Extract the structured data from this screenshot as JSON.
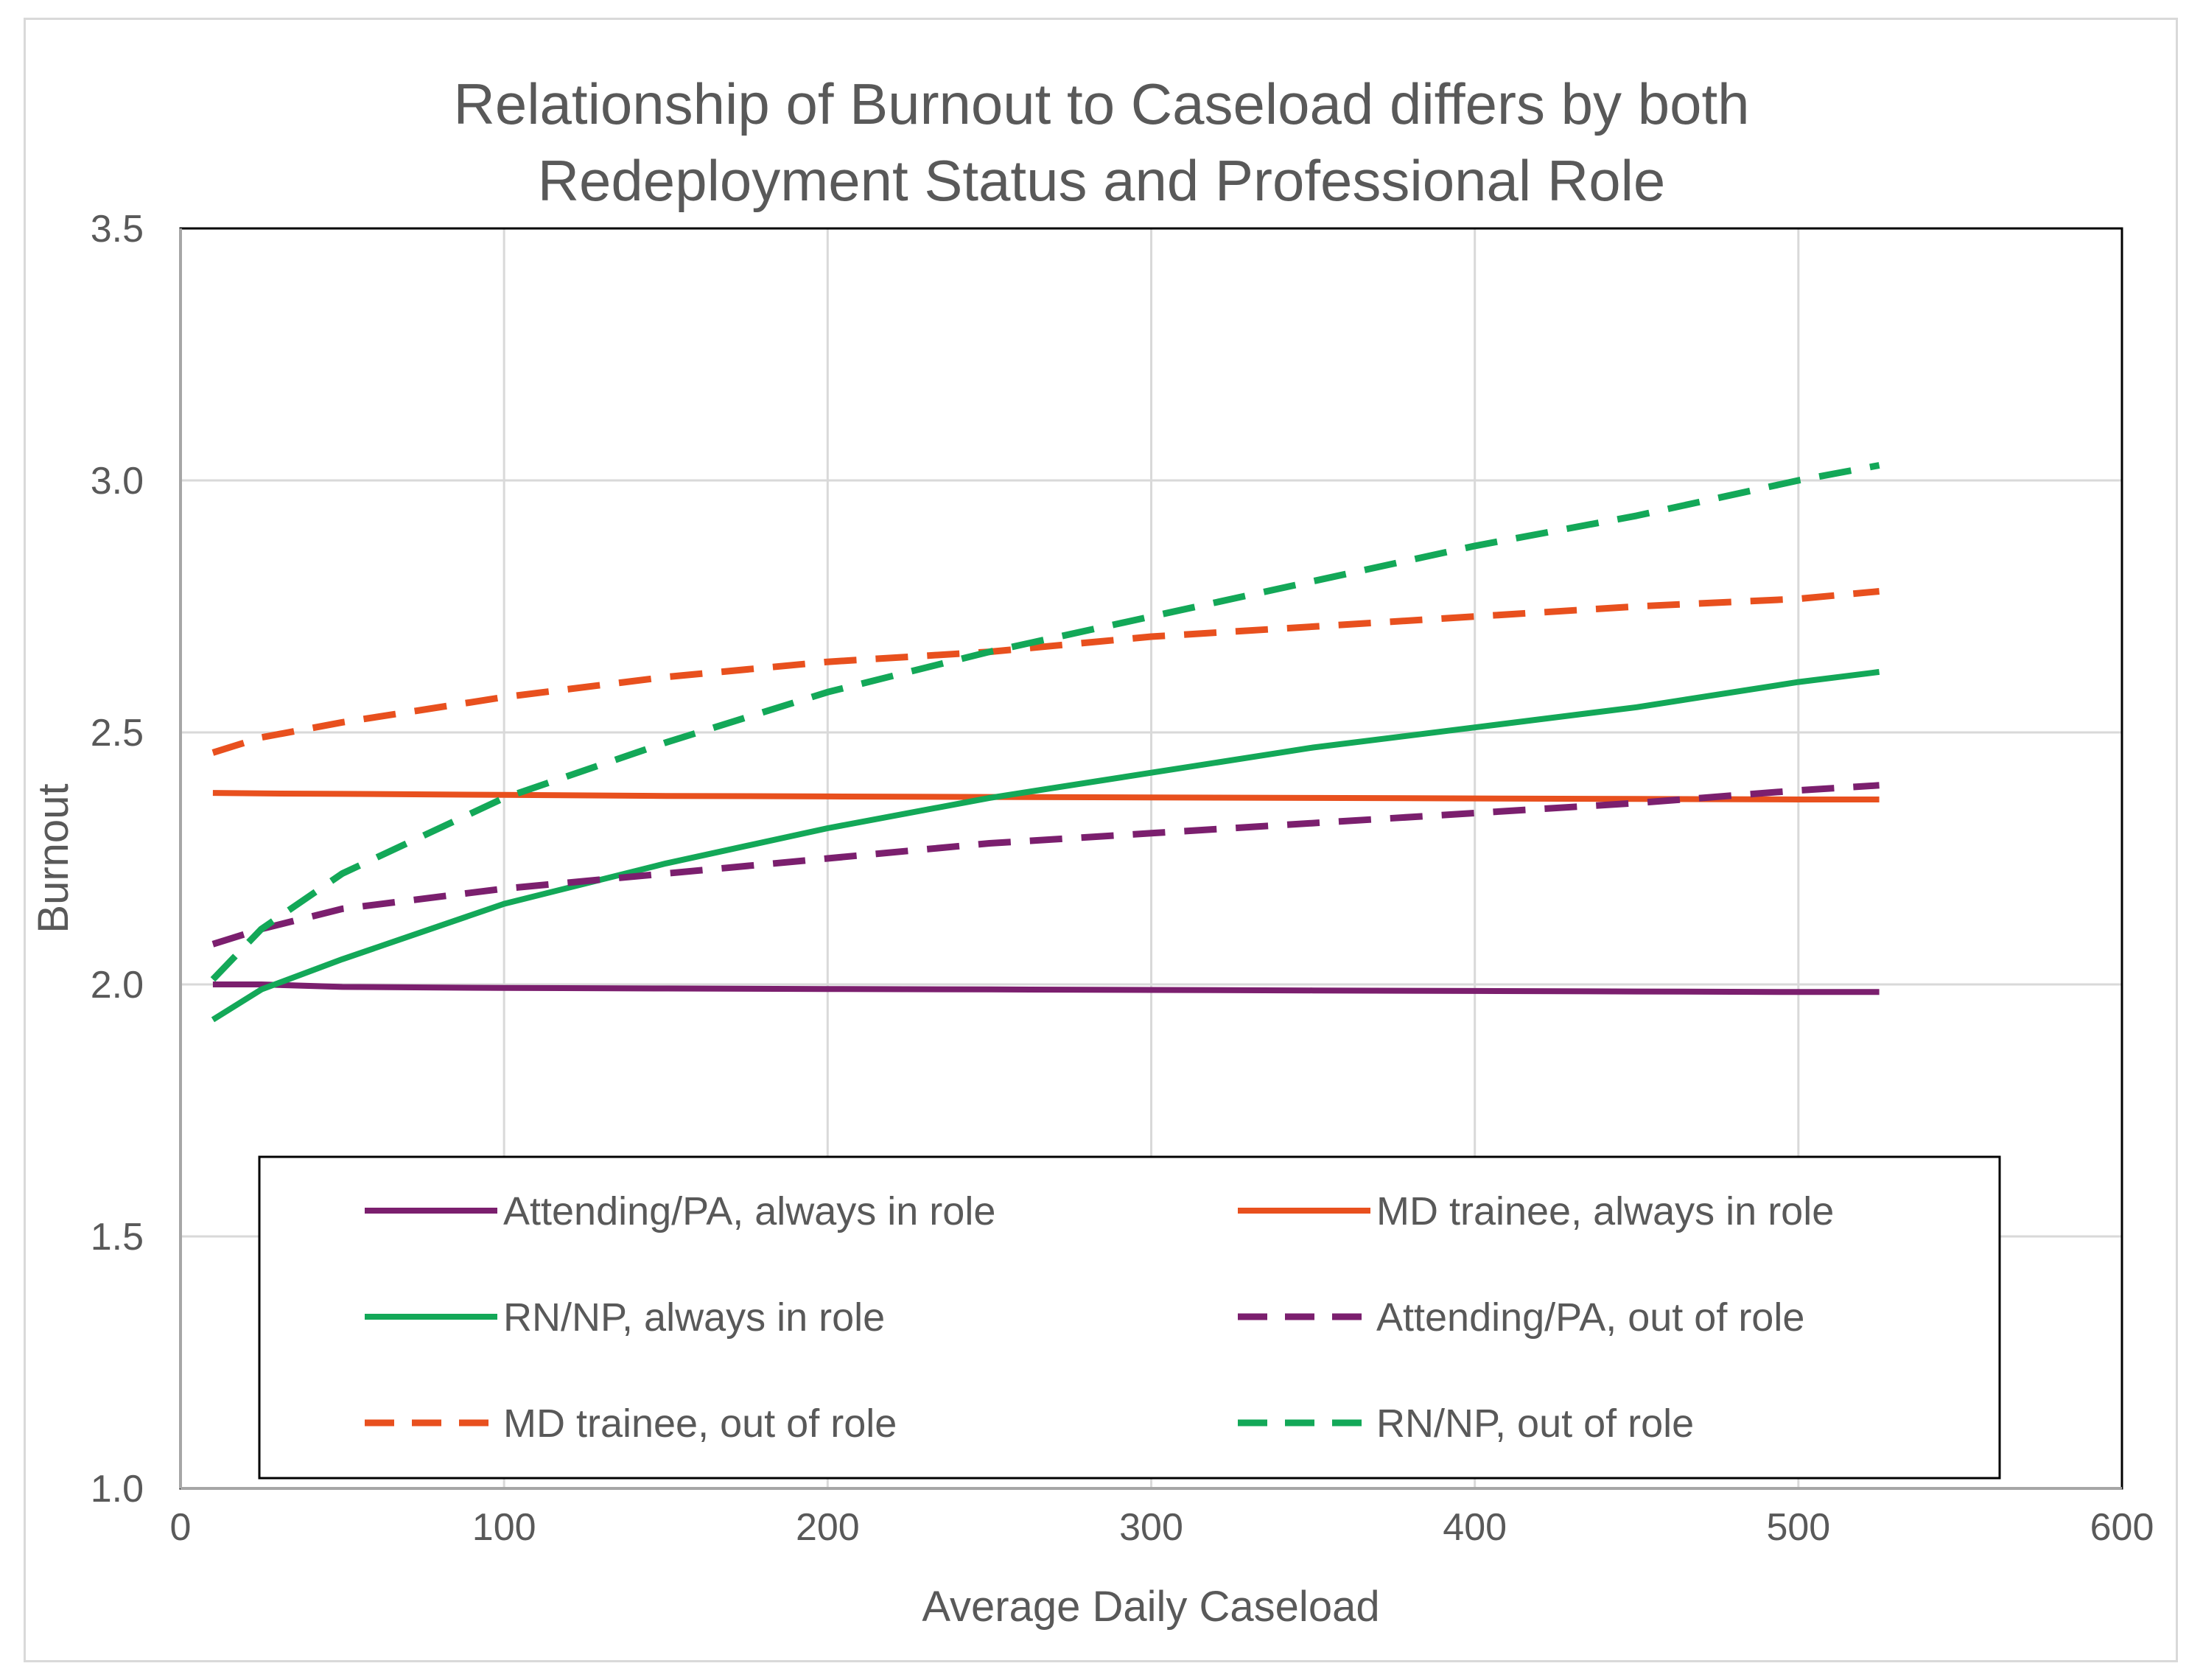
{
  "chart_data": {
    "type": "line",
    "title": "Relationship of Burnout to Caseload differs by both Redeployment Status and Professional Role",
    "title_lines": [
      "Relationship of Burnout to Caseload differs by both",
      "Redeployment Status and Professional Role"
    ],
    "xlabel": "Average Daily Caseload",
    "ylabel": "Burnout",
    "xlim": [
      0,
      600
    ],
    "ylim": [
      1.0,
      3.5
    ],
    "x_ticks": [
      0,
      100,
      200,
      300,
      400,
      500,
      600
    ],
    "y_ticks": [
      1.0,
      1.5,
      2.0,
      2.5,
      3.0,
      3.5
    ],
    "x_tick_labels": [
      "0",
      "100",
      "200",
      "300",
      "400",
      "500",
      "600"
    ],
    "y_tick_labels": [
      "1.0",
      "1.5",
      "2.0",
      "2.5",
      "3.0",
      "3.5"
    ],
    "grid": true,
    "legend_position": "bottom-center",
    "x": [
      10,
      25,
      50,
      100,
      150,
      200,
      250,
      300,
      350,
      400,
      450,
      500,
      525
    ],
    "series": [
      {
        "name": "Attending/PA, always in role",
        "color": "#7b1f6e",
        "dash": "solid",
        "values": [
          2.0,
          2.0,
          1.995,
          1.993,
          1.992,
          1.991,
          1.99,
          1.989,
          1.988,
          1.987,
          1.986,
          1.985,
          1.985
        ]
      },
      {
        "name": "MD trainee, always in role",
        "color": "#e8501e",
        "dash": "solid",
        "values": [
          2.38,
          2.379,
          2.378,
          2.376,
          2.374,
          2.373,
          2.372,
          2.371,
          2.37,
          2.369,
          2.368,
          2.367,
          2.367
        ]
      },
      {
        "name": "RN/NP, always in role",
        "color": "#13a858",
        "dash": "solid",
        "values": [
          1.93,
          1.99,
          2.05,
          2.16,
          2.24,
          2.31,
          2.37,
          2.42,
          2.47,
          2.51,
          2.55,
          2.6,
          2.62
        ]
      },
      {
        "name": "Attending/PA, out of role",
        "color": "#7b1f6e",
        "dash": "dashed",
        "values": [
          2.08,
          2.11,
          2.15,
          2.19,
          2.22,
          2.25,
          2.28,
          2.3,
          2.32,
          2.34,
          2.36,
          2.385,
          2.395
        ]
      },
      {
        "name": "MD trainee, out of role",
        "color": "#e8501e",
        "dash": "dashed",
        "values": [
          2.46,
          2.49,
          2.52,
          2.57,
          2.61,
          2.64,
          2.66,
          2.69,
          2.71,
          2.73,
          2.75,
          2.765,
          2.78
        ]
      },
      {
        "name": "RN/NP, out of role",
        "color": "#13a858",
        "dash": "dashed",
        "values": [
          2.01,
          2.11,
          2.22,
          2.37,
          2.48,
          2.58,
          2.66,
          2.73,
          2.8,
          2.87,
          2.93,
          3.0,
          3.03
        ]
      }
    ]
  }
}
